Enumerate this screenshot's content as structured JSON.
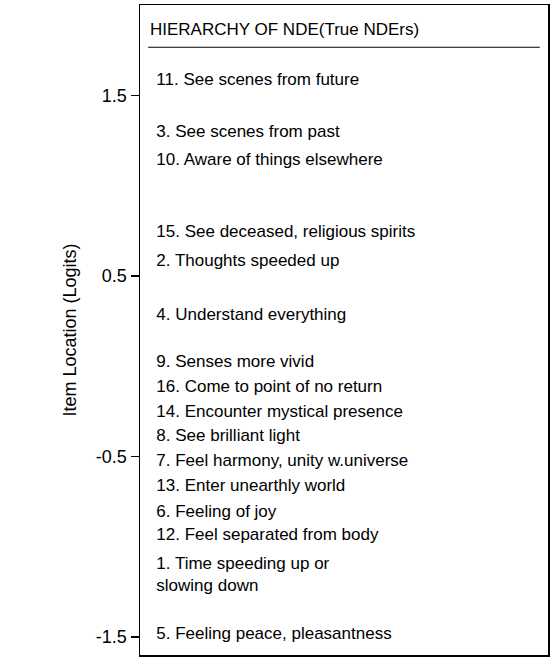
{
  "chart_data": {
    "type": "scatter",
    "title": "HIERARCHY OF NDE(True NDErs)",
    "y_label": "Item Location (Logits)",
    "categories": [
      "11. See scenes from future",
      "3. See scenes from past",
      "10. Aware of things elsewhere",
      "15. See deceased, religious spirits",
      "2. Thoughts speeded up",
      "4. Understand everything",
      "9. Senses more vivid",
      "16. Come to point of no return",
      "14. Encounter mystical presence",
      "8. See brilliant light",
      "7. Feel harmony, unity w.universe",
      "13. Enter unearthly world",
      "6. Feeling of joy",
      "12. Feel separated from body",
      "1. Time speeding up or\nslowing down",
      "5. Feeling peace, pleasantness"
    ],
    "values": [
      1.58,
      1.29,
      1.14,
      0.74,
      0.58,
      0.28,
      0.02,
      -0.12,
      -0.26,
      -0.39,
      -0.53,
      -0.67,
      -0.81,
      -0.94,
      -1.16,
      -1.49
    ],
    "color": "#000000",
    "ylim": [
      -1.6,
      2.0
    ],
    "yticks": [
      1.5,
      0.5,
      -0.5,
      -1.5
    ],
    "grid": false,
    "tick_labels": "y",
    "marker": "none"
  }
}
